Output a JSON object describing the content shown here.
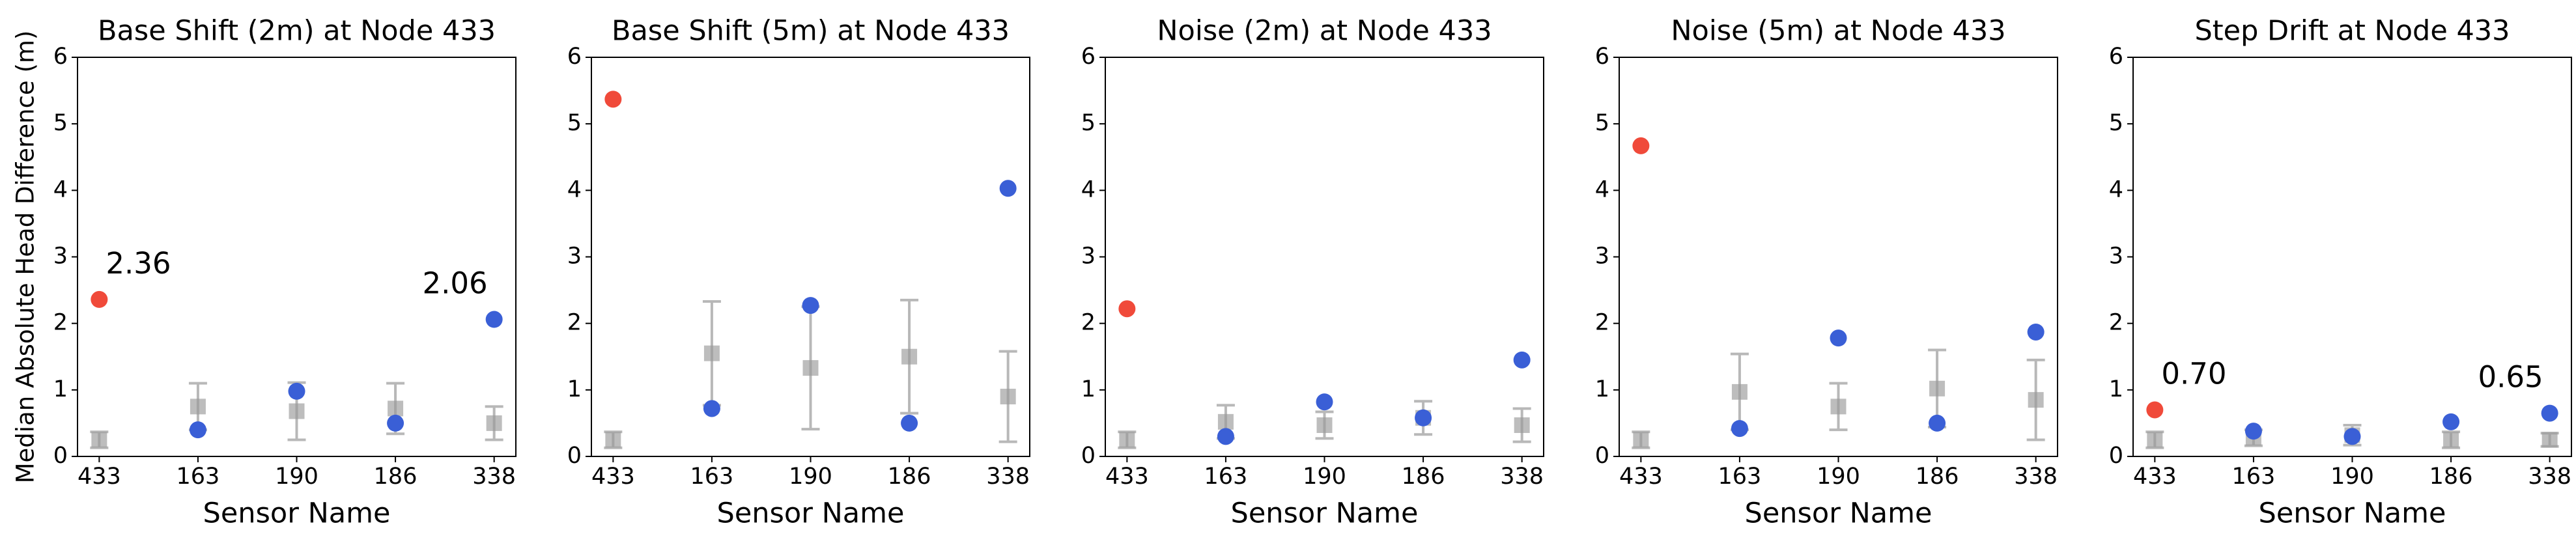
{
  "chart_data": [
    {
      "type": "errorbar",
      "title": "Base Shift (2m) at Node 433",
      "x_label": "Sensor Name",
      "y_label": "Median Absolute Head Difference (m)",
      "categories": [
        "433",
        "163",
        "190",
        "186",
        "338"
      ],
      "ylim": [
        0,
        6
      ],
      "yticks": [
        0,
        1,
        2,
        3,
        4,
        5,
        6
      ],
      "series": [
        {
          "color": "#999999",
          "marker": "square",
          "values": [
            0.25,
            0.75,
            0.68,
            0.72,
            0.5
          ],
          "errors": [
            0.12,
            0.35,
            0.43,
            0.38,
            0.25
          ]
        },
        {
          "color": "#f04a3a",
          "marker": "circle",
          "values": [
            2.36,
            null,
            null,
            null,
            null
          ],
          "value_labels": [
            "2.36",
            null,
            null,
            null,
            null
          ]
        },
        {
          "color": "#3a5fd6",
          "marker": "circle",
          "values": [
            null,
            0.4,
            0.98,
            0.5,
            2.06
          ],
          "value_labels": [
            null,
            null,
            null,
            null,
            "2.06"
          ]
        }
      ]
    },
    {
      "type": "errorbar",
      "title": "Base Shift (5m) at Node 433",
      "x_label": "Sensor Name",
      "categories": [
        "433",
        "163",
        "190",
        "186",
        "338"
      ],
      "ylim": [
        0,
        6
      ],
      "yticks": [
        0,
        1,
        2,
        3,
        4,
        5,
        6
      ],
      "series": [
        {
          "color": "#999999",
          "marker": "square",
          "values": [
            0.25,
            1.55,
            1.33,
            1.5,
            0.9
          ],
          "errors": [
            0.12,
            0.78,
            0.92,
            0.85,
            0.68
          ]
        },
        {
          "color": "#f04a3a",
          "marker": "circle",
          "values": [
            5.37,
            null,
            null,
            null,
            null
          ]
        },
        {
          "color": "#3a5fd6",
          "marker": "circle",
          "values": [
            null,
            0.72,
            2.27,
            0.5,
            4.03
          ]
        }
      ]
    },
    {
      "type": "errorbar",
      "title": "Noise (2m) at Node 433",
      "x_label": "Sensor Name",
      "categories": [
        "433",
        "163",
        "190",
        "186",
        "338"
      ],
      "ylim": [
        0,
        6
      ],
      "yticks": [
        0,
        1,
        2,
        3,
        4,
        5,
        6
      ],
      "series": [
        {
          "color": "#999999",
          "marker": "square",
          "values": [
            0.25,
            0.52,
            0.47,
            0.58,
            0.47
          ],
          "errors": [
            0.12,
            0.25,
            0.2,
            0.25,
            0.25
          ]
        },
        {
          "color": "#f04a3a",
          "marker": "circle",
          "values": [
            2.22,
            null,
            null,
            null,
            null
          ]
        },
        {
          "color": "#3a5fd6",
          "marker": "circle",
          "values": [
            null,
            0.3,
            0.82,
            0.58,
            1.45
          ]
        }
      ]
    },
    {
      "type": "errorbar",
      "title": "Noise (5m) at Node 433",
      "x_label": "Sensor Name",
      "categories": [
        "433",
        "163",
        "190",
        "186",
        "338"
      ],
      "ylim": [
        0,
        6
      ],
      "yticks": [
        0,
        1,
        2,
        3,
        4,
        5,
        6
      ],
      "series": [
        {
          "color": "#999999",
          "marker": "square",
          "values": [
            0.25,
            0.97,
            0.75,
            1.02,
            0.85
          ],
          "errors": [
            0.12,
            0.57,
            0.35,
            0.58,
            0.6
          ]
        },
        {
          "color": "#f04a3a",
          "marker": "circle",
          "values": [
            4.67,
            null,
            null,
            null,
            null
          ]
        },
        {
          "color": "#3a5fd6",
          "marker": "circle",
          "values": [
            null,
            0.42,
            1.78,
            0.5,
            1.87
          ]
        }
      ]
    },
    {
      "type": "errorbar",
      "title": "Step Drift at Node 433",
      "x_label": "Sensor Name",
      "categories": [
        "433",
        "163",
        "190",
        "186",
        "338"
      ],
      "ylim": [
        0,
        6
      ],
      "yticks": [
        0,
        1,
        2,
        3,
        4,
        5,
        6
      ],
      "series": [
        {
          "color": "#999999",
          "marker": "square",
          "values": [
            0.25,
            0.28,
            0.32,
            0.25,
            0.25
          ],
          "errors": [
            0.12,
            0.12,
            0.15,
            0.12,
            0.1
          ]
        },
        {
          "color": "#f04a3a",
          "marker": "circle",
          "values": [
            0.7,
            null,
            null,
            null,
            null
          ],
          "value_labels": [
            "0.70",
            null,
            null,
            null,
            null
          ]
        },
        {
          "color": "#3a5fd6",
          "marker": "circle",
          "values": [
            null,
            0.38,
            0.3,
            0.52,
            0.65
          ],
          "value_labels": [
            null,
            null,
            null,
            null,
            "0.65"
          ]
        }
      ]
    }
  ]
}
